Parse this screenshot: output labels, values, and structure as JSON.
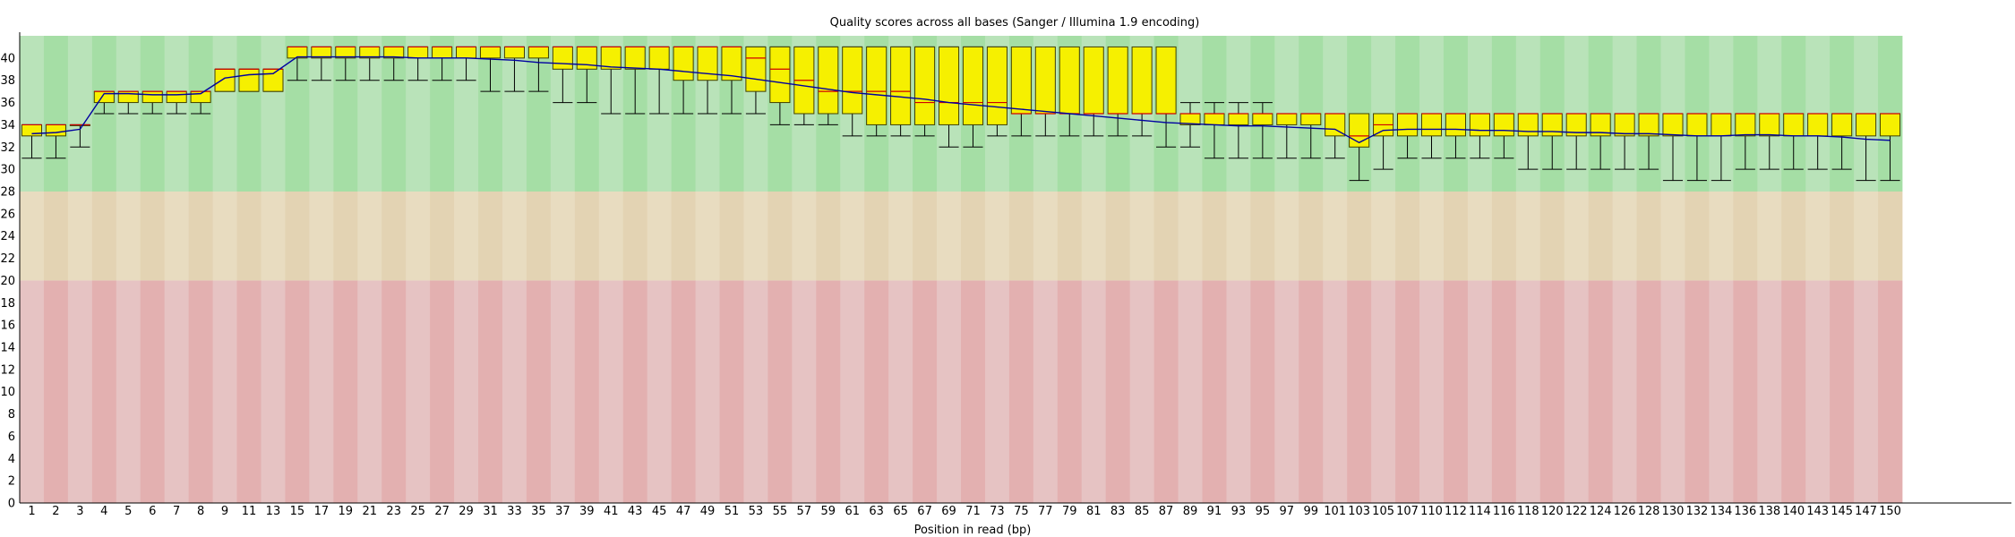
{
  "chart_data": {
    "type": "boxplot",
    "title": "Quality scores across all bases (Sanger / Illumina 1.9 encoding)",
    "xlabel": "Position in read (bp)",
    "ylabel": "",
    "ylim": [
      0,
      42
    ],
    "yticks": [
      0,
      2,
      4,
      6,
      8,
      10,
      12,
      14,
      16,
      18,
      20,
      22,
      24,
      26,
      28,
      30,
      32,
      34,
      36,
      38,
      40
    ],
    "zones": [
      {
        "from": 28,
        "to": 42,
        "color_a": "#b9e3b9",
        "color_b": "#a5dea5"
      },
      {
        "from": 20,
        "to": 28,
        "color_a": "#e8dcc0",
        "color_b": "#e3d3b3"
      },
      {
        "from": 0,
        "to": 20,
        "color_a": "#e6c3c3",
        "color_b": "#e3b0b0"
      }
    ],
    "colors": {
      "box": "#f6f000",
      "box_stroke": "#404000",
      "whisker": "#000000",
      "median": "#d00000",
      "mean": "#0000a0",
      "axis": "#000000"
    },
    "categories": [
      "1",
      "2",
      "3",
      "4",
      "5",
      "6",
      "7",
      "8",
      "9",
      "11",
      "13",
      "15",
      "17",
      "19",
      "21",
      "23",
      "25",
      "27",
      "29",
      "31",
      "33",
      "35",
      "37",
      "39",
      "41",
      "43",
      "45",
      "47",
      "49",
      "51",
      "53",
      "55",
      "57",
      "59",
      "61",
      "63",
      "65",
      "67",
      "69",
      "71",
      "73",
      "75",
      "77",
      "79",
      "81",
      "83",
      "85",
      "87",
      "89",
      "91",
      "93",
      "95",
      "97",
      "99",
      "101",
      "103",
      "105",
      "107",
      "110",
      "112",
      "114",
      "116",
      "118",
      "120",
      "122",
      "124",
      "126",
      "128",
      "130",
      "132",
      "134",
      "136",
      "138",
      "140",
      "143",
      "145",
      "147",
      "150"
    ],
    "xtick_labels": [
      "1",
      "2",
      "3",
      "4",
      "5",
      "6",
      "7",
      "8",
      "9",
      "11",
      "13",
      "15",
      "17",
      "19",
      "21",
      "23",
      "25",
      "27",
      "29",
      "31",
      "33",
      "35",
      "37",
      "39",
      "41",
      "43",
      "45",
      "47",
      "49",
      "51",
      "53",
      "55",
      "57",
      "59",
      "61",
      "63",
      "65",
      "67",
      "69",
      "71",
      "73",
      "75",
      "77",
      "79",
      "81",
      "83",
      "85",
      "87",
      "89",
      "91",
      "93",
      "95",
      "97",
      "99",
      "101",
      "103",
      "105",
      "107",
      "110",
      "112",
      "114",
      "116",
      "118",
      "120",
      "122",
      "124",
      "126",
      "128",
      "130",
      "132",
      "134",
      "136",
      "138",
      "140",
      "143",
      "145",
      "147",
      "150"
    ],
    "q1": [
      33,
      33,
      34,
      36,
      36,
      36,
      36,
      36,
      37,
      37,
      37,
      40,
      40,
      40,
      40,
      40,
      40,
      40,
      40,
      40,
      40,
      40,
      39,
      39,
      39,
      39,
      39,
      38,
      38,
      38,
      37,
      36,
      35,
      35,
      35,
      34,
      34,
      34,
      34,
      34,
      34,
      35,
      35,
      35,
      35,
      35,
      35,
      35,
      34,
      34,
      34,
      34,
      34,
      34,
      33,
      32,
      33,
      33,
      33,
      33,
      33,
      33,
      33,
      33,
      33,
      33,
      33,
      33,
      33,
      33,
      33,
      33,
      33,
      33,
      33,
      33,
      33,
      33
    ],
    "q3": [
      34,
      34,
      34,
      37,
      37,
      37,
      37,
      37,
      39,
      39,
      39,
      41,
      41,
      41,
      41,
      41,
      41,
      41,
      41,
      41,
      41,
      41,
      41,
      41,
      41,
      41,
      41,
      41,
      41,
      41,
      41,
      41,
      41,
      41,
      41,
      41,
      41,
      41,
      41,
      41,
      41,
      41,
      41,
      41,
      41,
      41,
      41,
      41,
      35,
      35,
      35,
      35,
      35,
      35,
      35,
      35,
      35,
      35,
      35,
      35,
      35,
      35,
      35,
      35,
      35,
      35,
      35,
      35,
      35,
      35,
      35,
      35,
      35,
      35,
      35,
      35,
      35,
      35
    ],
    "median": [
      34,
      34,
      34,
      37,
      37,
      37,
      37,
      37,
      39,
      39,
      39,
      41,
      41,
      41,
      41,
      41,
      41,
      41,
      41,
      41,
      41,
      41,
      41,
      41,
      41,
      41,
      41,
      41,
      41,
      41,
      40,
      39,
      38,
      37,
      37,
      37,
      37,
      36,
      36,
      36,
      36,
      35,
      35,
      35,
      35,
      35,
      35,
      35,
      35,
      35,
      35,
      35,
      35,
      35,
      35,
      33,
      34,
      35,
      35,
      35,
      35,
      35,
      35,
      35,
      35,
      35,
      35,
      35,
      35,
      35,
      35,
      35,
      35,
      35,
      35,
      35,
      35,
      35
    ],
    "lower_whisker": [
      31,
      31,
      32,
      35,
      35,
      35,
      35,
      35,
      37,
      37,
      37,
      38,
      38,
      38,
      38,
      38,
      38,
      38,
      38,
      37,
      37,
      37,
      36,
      36,
      35,
      35,
      35,
      35,
      35,
      35,
      35,
      34,
      34,
      34,
      33,
      33,
      33,
      33,
      32,
      32,
      33,
      33,
      33,
      33,
      33,
      33,
      33,
      32,
      32,
      31,
      31,
      31,
      31,
      31,
      31,
      29,
      30,
      31,
      31,
      31,
      31,
      31,
      30,
      30,
      30,
      30,
      30,
      30,
      29,
      29,
      29,
      30,
      30,
      30,
      30,
      30,
      29,
      29
    ],
    "upper_whisker": [
      34,
      34,
      34,
      37,
      37,
      37,
      37,
      37,
      39,
      39,
      39,
      41,
      41,
      41,
      41,
      41,
      41,
      41,
      41,
      41,
      41,
      41,
      41,
      41,
      41,
      41,
      41,
      41,
      41,
      41,
      41,
      41,
      41,
      41,
      41,
      41,
      41,
      41,
      41,
      41,
      41,
      40,
      39,
      39,
      39,
      37,
      37,
      36,
      36,
      36,
      36,
      36,
      35,
      35,
      35,
      35,
      35,
      35,
      35,
      35,
      35,
      35,
      35,
      35,
      35,
      35,
      35,
      35,
      35,
      35,
      35,
      35,
      35,
      35,
      35,
      35,
      35,
      35
    ],
    "mean": [
      33.2,
      33.3,
      33.6,
      36.8,
      36.8,
      36.7,
      36.7,
      36.8,
      38.2,
      38.5,
      38.6,
      40.1,
      40.1,
      40.1,
      40.1,
      40.1,
      40.0,
      40.0,
      40.0,
      39.9,
      39.8,
      39.6,
      39.5,
      39.4,
      39.2,
      39.1,
      39.0,
      38.8,
      38.6,
      38.4,
      38.1,
      37.8,
      37.5,
      37.2,
      36.9,
      36.7,
      36.5,
      36.3,
      36.0,
      35.8,
      35.6,
      35.4,
      35.2,
      35.0,
      34.8,
      34.6,
      34.4,
      34.2,
      34.1,
      34.0,
      33.9,
      33.9,
      33.8,
      33.7,
      33.6,
      32.4,
      33.5,
      33.6,
      33.6,
      33.6,
      33.5,
      33.5,
      33.4,
      33.4,
      33.3,
      33.3,
      33.2,
      33.2,
      33.1,
      33.0,
      33.0,
      33.1,
      33.1,
      33.0,
      33.0,
      32.9,
      32.7,
      32.6
    ]
  }
}
